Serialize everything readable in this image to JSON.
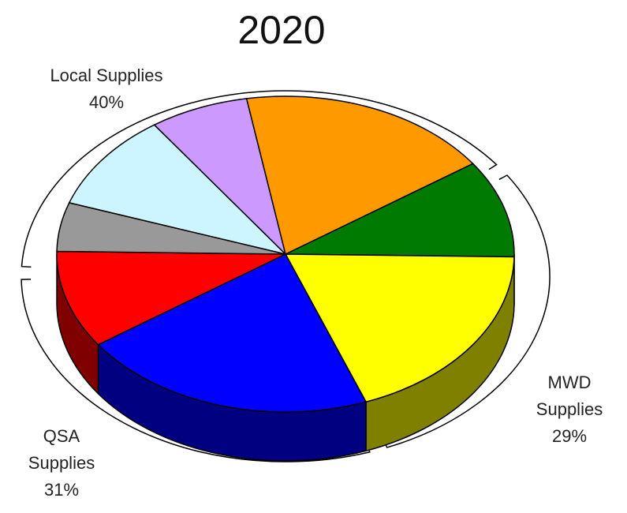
{
  "chart_data": {
    "type": "pie",
    "title": "2020",
    "style": "3d-exploded-grouped",
    "groups": [
      {
        "name": "Local Supplies",
        "percent_label": "40%",
        "value": 40,
        "label_lines": [
          "Local Supplies",
          "40%"
        ]
      },
      {
        "name": "MWD Supplies",
        "percent_label": "29%",
        "value": 29,
        "label_lines": [
          "MWD",
          "Supplies",
          "29%"
        ]
      },
      {
        "name": "QSA Supplies",
        "percent_label": "31%",
        "value": 31,
        "label_lines": [
          "QSA",
          "Supplies",
          "31%"
        ]
      }
    ],
    "slices": [
      {
        "group": "MWD Supplies",
        "value": 10,
        "color": "#007a00"
      },
      {
        "group": "MWD Supplies",
        "value": 19,
        "color": "#ffff00"
      },
      {
        "group": "QSA Supplies",
        "value": 21,
        "color": "#0000ff"
      },
      {
        "group": "QSA Supplies",
        "value": 10,
        "color": "#ff0000"
      },
      {
        "group": "Local Supplies",
        "value": 5,
        "color": "#999999"
      },
      {
        "group": "Local Supplies",
        "value": 10,
        "color": "#ccf5ff"
      },
      {
        "group": "Local Supplies",
        "value": 7,
        "color": "#cc99ff"
      },
      {
        "group": "Local Supplies",
        "value": 18,
        "color": "#ff9900"
      }
    ]
  }
}
